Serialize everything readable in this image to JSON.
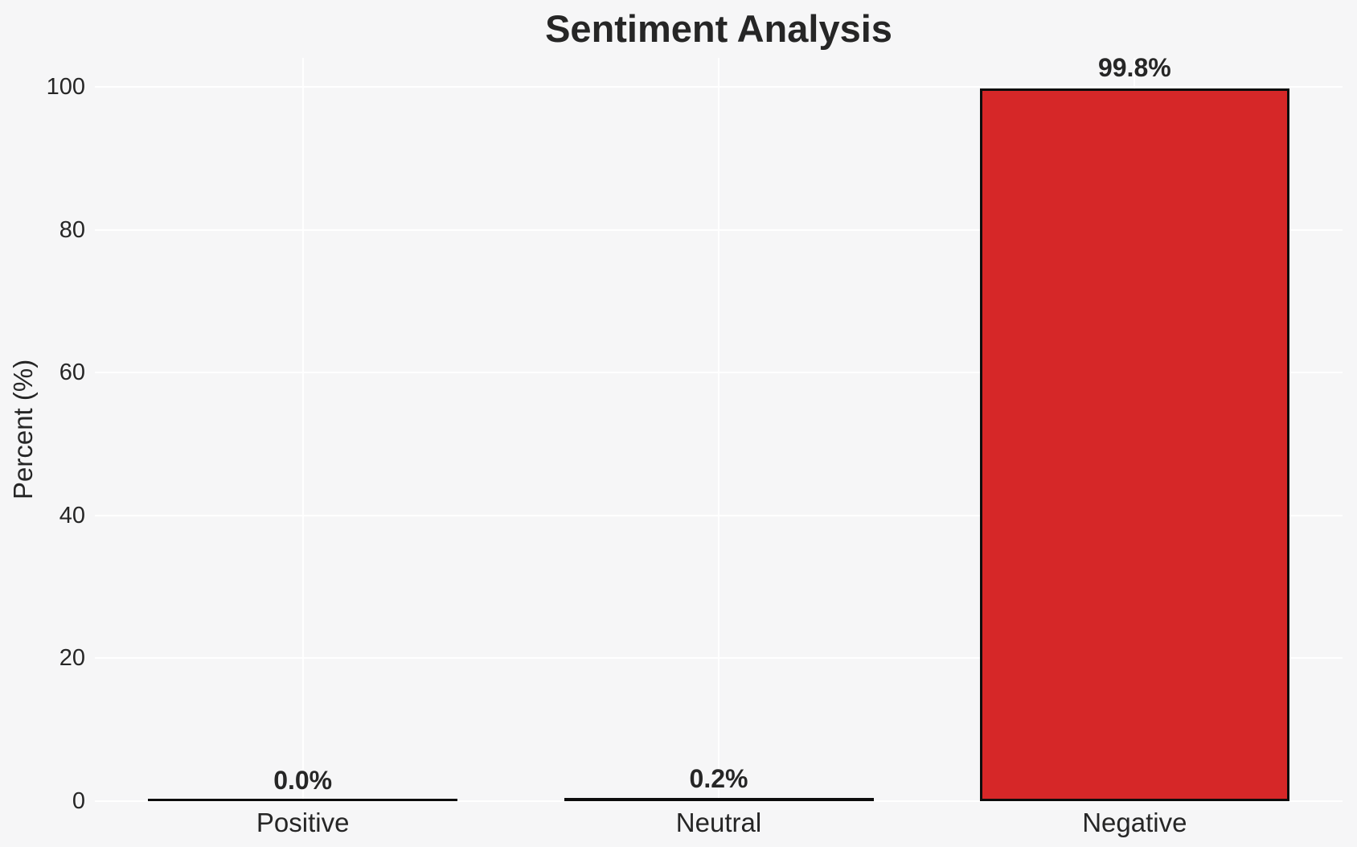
{
  "chart_data": {
    "type": "bar",
    "title": "Sentiment Analysis",
    "xlabel": "",
    "ylabel": "Percent (%)",
    "categories": [
      "Positive",
      "Neutral",
      "Negative"
    ],
    "values": [
      0.0,
      0.2,
      99.8
    ],
    "value_labels": [
      "0.0%",
      "0.2%",
      "99.8%"
    ],
    "ylim": [
      0,
      100
    ],
    "yticks": [
      0,
      20,
      40,
      60,
      80,
      100
    ],
    "grid": true,
    "legend_position": "none",
    "colors": {
      "bar_fill": "#d62728",
      "bar_edge": "#0d0d0d",
      "background": "#f6f6f7",
      "gridline": "#ffffff",
      "text": "#262626"
    }
  }
}
